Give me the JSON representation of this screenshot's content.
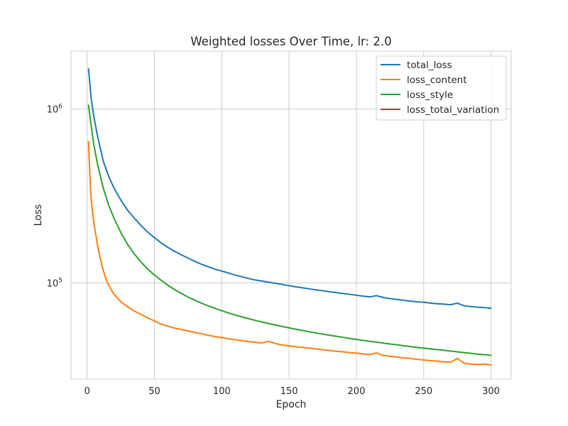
{
  "chart_data": {
    "type": "line",
    "title": "Weighted losses Over Time, lr: 2.0",
    "xlabel": "Epoch",
    "ylabel": "Loss",
    "xlim": [
      -12,
      315
    ],
    "ylim": [
      28000,
      2150000
    ],
    "yscale": "log",
    "grid": true,
    "legend_position": "top-right",
    "x_ticks": [
      0,
      50,
      100,
      150,
      200,
      250,
      300
    ],
    "y_ticks": [
      {
        "value": 100000,
        "label": "10",
        "exponent": "5"
      },
      {
        "value": 1000000,
        "label": "10",
        "exponent": "6"
      }
    ],
    "series": [
      {
        "name": "total_loss",
        "color": "#1f77b4",
        "points": [
          [
            1,
            1700000
          ],
          [
            3,
            1150000
          ],
          [
            5,
            900000
          ],
          [
            8,
            680000
          ],
          [
            12,
            500000
          ],
          [
            16,
            410000
          ],
          [
            20,
            350000
          ],
          [
            25,
            300000
          ],
          [
            30,
            262000
          ],
          [
            35,
            236000
          ],
          [
            40,
            214000
          ],
          [
            45,
            196000
          ],
          [
            50,
            182000
          ],
          [
            55,
            170000
          ],
          [
            60,
            160000
          ],
          [
            65,
            152000
          ],
          [
            70,
            145000
          ],
          [
            75,
            139000
          ],
          [
            80,
            133000
          ],
          [
            85,
            128000
          ],
          [
            90,
            124000
          ],
          [
            95,
            120000
          ],
          [
            100,
            117000
          ],
          [
            105,
            114000
          ],
          [
            110,
            111000
          ],
          [
            115,
            108500
          ],
          [
            120,
            106000
          ],
          [
            125,
            104000
          ],
          [
            130,
            102500
          ],
          [
            135,
            101000
          ],
          [
            140,
            99500
          ],
          [
            145,
            98000
          ],
          [
            150,
            96500
          ],
          [
            155,
            95000
          ],
          [
            160,
            93800
          ],
          [
            165,
            92500
          ],
          [
            170,
            91300
          ],
          [
            175,
            90200
          ],
          [
            180,
            89000
          ],
          [
            185,
            88000
          ],
          [
            190,
            87000
          ],
          [
            195,
            86000
          ],
          [
            200,
            85000
          ],
          [
            205,
            84000
          ],
          [
            210,
            83200
          ],
          [
            215,
            84500
          ],
          [
            220,
            82500
          ],
          [
            225,
            81300
          ],
          [
            230,
            80400
          ],
          [
            235,
            79500
          ],
          [
            240,
            78700
          ],
          [
            245,
            77900
          ],
          [
            250,
            77500
          ],
          [
            255,
            76600
          ],
          [
            260,
            76000
          ],
          [
            265,
            75500
          ],
          [
            270,
            75000
          ],
          [
            275,
            76500
          ],
          [
            280,
            74000
          ],
          [
            285,
            73200
          ],
          [
            290,
            72600
          ],
          [
            295,
            72200
          ],
          [
            300,
            71500
          ]
        ]
      },
      {
        "name": "loss_content",
        "color": "#ff7f0e",
        "points": [
          [
            1,
            650000
          ],
          [
            2,
            420000
          ],
          [
            3,
            300000
          ],
          [
            5,
            220000
          ],
          [
            8,
            160000
          ],
          [
            11,
            125000
          ],
          [
            14,
            105000
          ],
          [
            17,
            94000
          ],
          [
            20,
            86000
          ],
          [
            25,
            78000
          ],
          [
            30,
            73000
          ],
          [
            35,
            69000
          ],
          [
            40,
            66000
          ],
          [
            45,
            63000
          ],
          [
            50,
            60500
          ],
          [
            55,
            58000
          ],
          [
            60,
            56500
          ],
          [
            65,
            55000
          ],
          [
            70,
            54000
          ],
          [
            75,
            53000
          ],
          [
            80,
            52000
          ],
          [
            85,
            51000
          ],
          [
            90,
            50000
          ],
          [
            95,
            49200
          ],
          [
            100,
            48500
          ],
          [
            105,
            47800
          ],
          [
            110,
            47200
          ],
          [
            115,
            46600
          ],
          [
            120,
            46000
          ],
          [
            125,
            45600
          ],
          [
            130,
            45200
          ],
          [
            135,
            46200
          ],
          [
            140,
            44800
          ],
          [
            145,
            44000
          ],
          [
            150,
            43500
          ],
          [
            155,
            43000
          ],
          [
            160,
            42600
          ],
          [
            165,
            42200
          ],
          [
            170,
            41800
          ],
          [
            175,
            41300
          ],
          [
            180,
            40900
          ],
          [
            185,
            40500
          ],
          [
            190,
            40200
          ],
          [
            195,
            39800
          ],
          [
            200,
            39500
          ],
          [
            205,
            39100
          ],
          [
            210,
            38800
          ],
          [
            215,
            39600
          ],
          [
            220,
            38300
          ],
          [
            225,
            37900
          ],
          [
            230,
            37500
          ],
          [
            235,
            37100
          ],
          [
            240,
            36800
          ],
          [
            245,
            36400
          ],
          [
            250,
            36100
          ],
          [
            255,
            35800
          ],
          [
            260,
            35500
          ],
          [
            265,
            35200
          ],
          [
            270,
            35000
          ],
          [
            275,
            36800
          ],
          [
            280,
            34600
          ],
          [
            285,
            34200
          ],
          [
            290,
            34000
          ],
          [
            295,
            34200
          ],
          [
            300,
            33800
          ]
        ]
      },
      {
        "name": "loss_style",
        "color": "#2ca02c",
        "points": [
          [
            1,
            1050000
          ],
          [
            3,
            800000
          ],
          [
            5,
            620000
          ],
          [
            8,
            470000
          ],
          [
            12,
            350000
          ],
          [
            16,
            280000
          ],
          [
            20,
            235000
          ],
          [
            25,
            195000
          ],
          [
            30,
            167000
          ],
          [
            35,
            147000
          ],
          [
            40,
            132000
          ],
          [
            45,
            120000
          ],
          [
            50,
            111000
          ],
          [
            55,
            103500
          ],
          [
            60,
            97000
          ],
          [
            65,
            91500
          ],
          [
            70,
            87000
          ],
          [
            75,
            83000
          ],
          [
            80,
            79500
          ],
          [
            85,
            76500
          ],
          [
            90,
            73800
          ],
          [
            95,
            71400
          ],
          [
            100,
            69200
          ],
          [
            105,
            67200
          ],
          [
            110,
            65400
          ],
          [
            115,
            63800
          ],
          [
            120,
            62300
          ],
          [
            125,
            60900
          ],
          [
            130,
            59600
          ],
          [
            135,
            58400
          ],
          [
            140,
            57300
          ],
          [
            145,
            56200
          ],
          [
            150,
            55200
          ],
          [
            155,
            54200
          ],
          [
            160,
            53300
          ],
          [
            165,
            52400
          ],
          [
            170,
            51600
          ],
          [
            175,
            50800
          ],
          [
            180,
            50100
          ],
          [
            185,
            49400
          ],
          [
            190,
            48700
          ],
          [
            195,
            48000
          ],
          [
            200,
            47400
          ],
          [
            205,
            46800
          ],
          [
            210,
            46200
          ],
          [
            215,
            45700
          ],
          [
            220,
            45100
          ],
          [
            225,
            44600
          ],
          [
            230,
            44100
          ],
          [
            235,
            43600
          ],
          [
            240,
            43100
          ],
          [
            245,
            42600
          ],
          [
            250,
            42200
          ],
          [
            255,
            41800
          ],
          [
            260,
            41400
          ],
          [
            265,
            41000
          ],
          [
            270,
            40600
          ],
          [
            275,
            40200
          ],
          [
            280,
            39800
          ],
          [
            285,
            39400
          ],
          [
            290,
            39000
          ],
          [
            295,
            38700
          ],
          [
            300,
            38400
          ]
        ]
      },
      {
        "name": "loss_total_variation",
        "color": "#d62728",
        "points": []
      }
    ]
  }
}
